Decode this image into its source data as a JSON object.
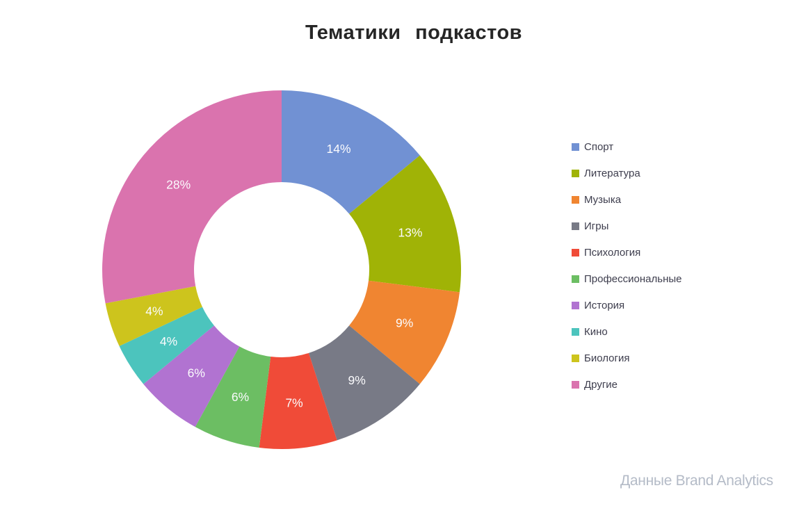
{
  "header": {
    "title": "Тематики подкастов"
  },
  "attribution": {
    "text": "Данные Brand Analytics",
    "color": "#b4bbc7"
  },
  "chart_data": {
    "type": "pie",
    "subtype": "donut",
    "title": "Тематики подкастов",
    "unit": "%",
    "start_angle_deg": 0,
    "direction": "clockwise",
    "inner_radius_ratio": 0.49,
    "legend_position": "right",
    "data_labels_position": "on-slice",
    "label_color": "#ffffff",
    "background": "#ffffff",
    "categories": [
      "Спорт",
      "Литература",
      "Музыка",
      "Игры",
      "Психология",
      "Профессиональные",
      "История",
      "Кино",
      "Биология",
      "Другие"
    ],
    "values": [
      14,
      13,
      9,
      9,
      7,
      6,
      6,
      4,
      4,
      28
    ],
    "labels": [
      "14%",
      "13%",
      "9%",
      "9%",
      "7%",
      "6%",
      "6%",
      "4%",
      "4%",
      "28%"
    ],
    "colors": [
      "#7191d3",
      "#a0b306",
      "#f08531",
      "#787a86",
      "#f04b38",
      "#6cbe63",
      "#b173d1",
      "#4cc4bd",
      "#cdc41d",
      "#da73ae"
    ]
  }
}
